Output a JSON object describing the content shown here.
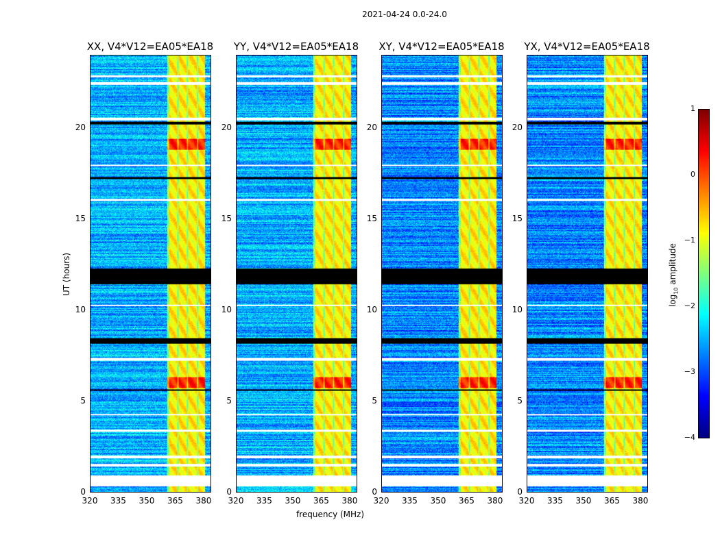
{
  "suptitle": "2021-04-24 0.0-24.0",
  "chart_data": [
    {
      "type": "heatmap",
      "title": "XX, V4*V12=EA05*EA18",
      "xlim": [
        320,
        384
      ],
      "ylim": [
        0,
        24
      ],
      "xticks": [
        "320",
        "335",
        "350",
        "365",
        "380"
      ],
      "yticks": [
        "0",
        "5",
        "10",
        "15",
        "20"
      ]
    },
    {
      "type": "heatmap",
      "title": "YY, V4*V12=EA05*EA18",
      "xlim": [
        320,
        384
      ],
      "ylim": [
        0,
        24
      ],
      "xticks": [
        "320",
        "335",
        "350",
        "365",
        "380"
      ],
      "yticks": [
        "0",
        "5",
        "10",
        "15",
        "20"
      ]
    },
    {
      "type": "heatmap",
      "title": "XY, V4*V12=EA05*EA18",
      "xlim": [
        320,
        384
      ],
      "ylim": [
        0,
        24
      ],
      "xticks": [
        "320",
        "335",
        "350",
        "365",
        "380"
      ],
      "yticks": [
        "0",
        "5",
        "10",
        "15",
        "20"
      ]
    },
    {
      "type": "heatmap",
      "title": "YX, V4*V12=EA05*EA18",
      "xlim": [
        320,
        384
      ],
      "ylim": [
        0,
        24
      ],
      "xticks": [
        "320",
        "335",
        "350",
        "365",
        "380"
      ],
      "yticks": [
        "0",
        "5",
        "10",
        "15",
        "20"
      ]
    }
  ],
  "axes": {
    "xlabel": "frequency (MHz)",
    "ylabel": "UT (hours)"
  },
  "colorbar": {
    "label": "log10 amplitude",
    "label_main": "log",
    "label_sub": "10",
    "label_rest": " amplitude",
    "range": [
      -4,
      1
    ],
    "ticks": [
      "1",
      "0",
      "−1",
      "−2",
      "−3",
      "−4"
    ],
    "colormap": "jet"
  },
  "features": {
    "background_log_amp": -2.5,
    "bright_band_mhz": [
      361,
      381
    ],
    "bright_band_log_amp": -0.8,
    "flagged_hours_black": [
      [
        11.4,
        12.3
      ],
      [
        8.15,
        8.45
      ],
      [
        5.55,
        5.65
      ],
      [
        17.2,
        17.3
      ],
      [
        20.2,
        20.35
      ]
    ],
    "gap_hours_white": [
      [
        0.3,
        0.9
      ],
      [
        1.4,
        1.55
      ],
      [
        1.85,
        2.0
      ],
      [
        3.3,
        3.4
      ],
      [
        4.2,
        4.3
      ],
      [
        7.2,
        7.35
      ],
      [
        10.2,
        10.3
      ],
      [
        16.0,
        16.1
      ],
      [
        17.9,
        18.0
      ],
      [
        20.45,
        20.6
      ],
      [
        22.4,
        22.55
      ],
      [
        22.8,
        22.9
      ]
    ],
    "bursts_hours": [
      [
        5.7,
        6.3
      ],
      [
        18.8,
        19.4
      ]
    ]
  }
}
